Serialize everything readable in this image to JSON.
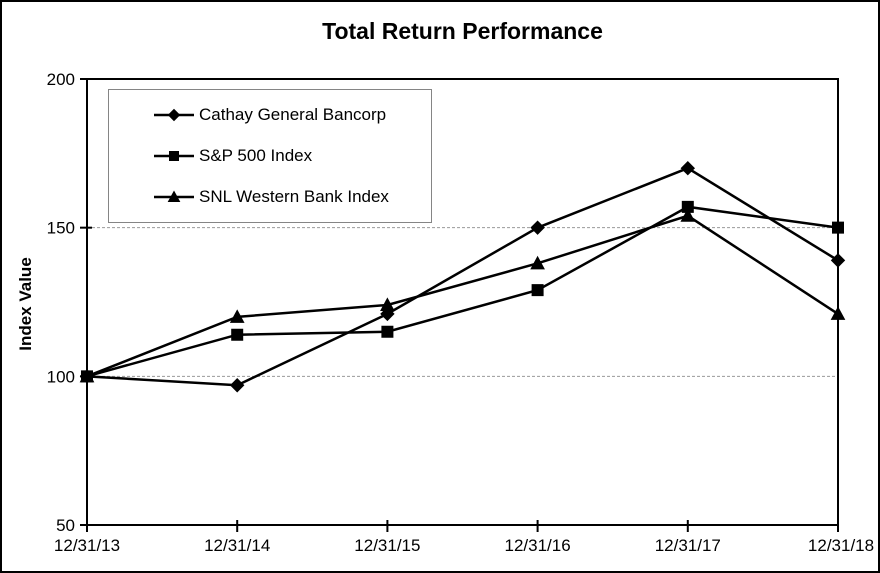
{
  "chart_data": {
    "type": "line",
    "title": "Total Return Performance",
    "ylabel": "Index Value",
    "xlabel": "",
    "categories": [
      "12/31/13",
      "12/31/14",
      "12/31/15",
      "12/31/16",
      "12/31/17",
      "12/31/18"
    ],
    "series": [
      {
        "name": "Cathay General Bancorp",
        "marker": "diamond",
        "values": [
          100,
          97,
          121,
          150,
          170,
          139
        ]
      },
      {
        "name": "S&P 500 Index",
        "marker": "square",
        "values": [
          100,
          114,
          115,
          129,
          157,
          150
        ]
      },
      {
        "name": "SNL Western Bank Index",
        "marker": "triangle",
        "values": [
          100,
          120,
          124,
          138,
          154,
          121
        ]
      }
    ],
    "ylim": [
      50,
      200
    ],
    "yticks": [
      200,
      150,
      100,
      50
    ],
    "grid_values": [
      150,
      100
    ],
    "grid_on": true,
    "legend_position": "top-left-inside",
    "colors": {
      "foreground": "#000000",
      "grid": "#999999",
      "legend_border": "#858585",
      "background": "#ffffff"
    }
  }
}
